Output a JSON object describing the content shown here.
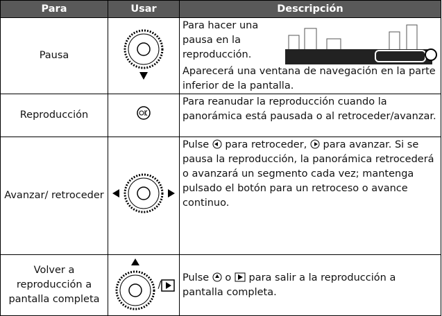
{
  "table": {
    "header": [
      "Para",
      "Usar",
      "Descripción"
    ],
    "rows": [
      {
        "para": "Pausa",
        "descripcion": [
          "Para hacer una pausa en la reproducción.",
          "Aparecerá una ventana de navegación en la parte inferior de la pantalla."
        ]
      },
      {
        "para": "Reproducción",
        "descripcion": [
          "Para reanudar la reproducción cuando la panorámica está pausada o al retroceder/avanzar."
        ]
      },
      {
        "para": "Avanzar/ retroceder",
        "descripcion": [
          "Pulse",
          "para retroceder,",
          "para avanzar. Si se pausa la reproducción, la panorámica retrocederá o avanzará un segmento cada vez; mantenga pulsado el botón para un retroceso o avance continuo."
        ]
      },
      {
        "para": "Volver a reproducción a pantalla completa",
        "usar": "/",
        "descripcion": [
          "Pulse",
          "o",
          "para salir a la reproducción a pantalla completa."
        ]
      }
    ]
  }
}
